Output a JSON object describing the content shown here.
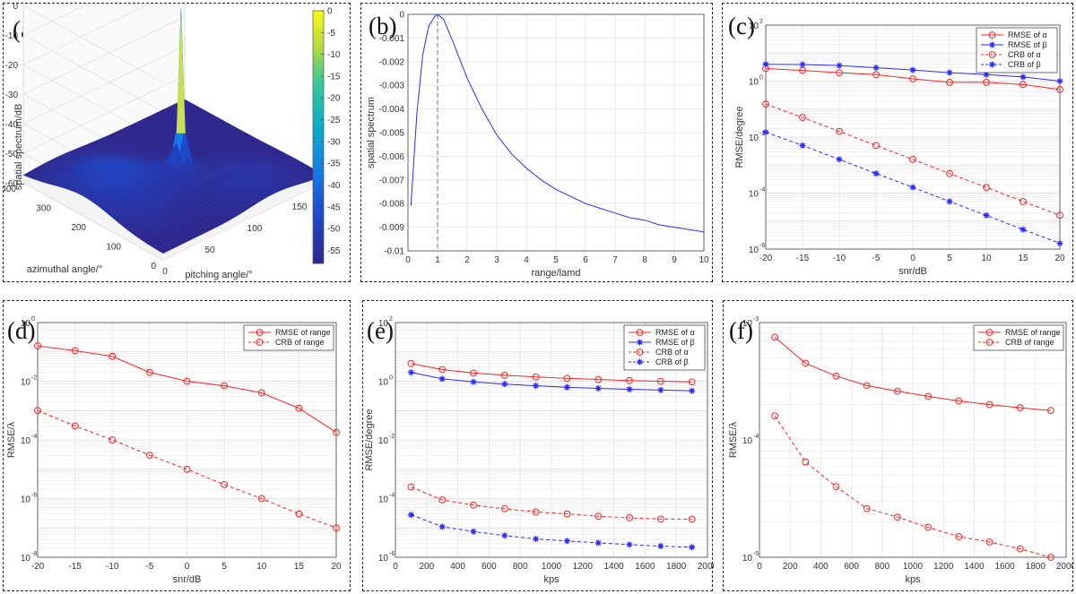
{
  "panel_labels": [
    "(a)",
    "(b)",
    "(c)",
    "(d)",
    "(e)",
    "(f)"
  ],
  "colors": {
    "red": "#ff2020",
    "blue": "#2a2aff",
    "grid": "#e4e4e4"
  },
  "chart_data": [
    {
      "id": "a",
      "type": "surface3d",
      "zlabel": "spatial spectrum/dB",
      "xlabel": "pitching angle/°",
      "ylabel": "azimuthal angle/°",
      "zlim": [
        -60,
        0
      ],
      "z_ticks": [
        "0",
        "-10",
        "-20",
        "-30",
        "-40",
        "-50",
        "-60"
      ],
      "azimuth_ticks": [
        "400",
        "300",
        "200",
        "100",
        "0"
      ],
      "pitch_ticks": [
        "0",
        "50",
        "100",
        "150"
      ],
      "colorbar_ticks": [
        "0",
        "-5",
        "-10",
        "-15",
        "-20",
        "-25",
        "-30",
        "-35",
        "-40",
        "-45",
        "-50",
        "-55"
      ],
      "colorbar_range": [
        -58,
        0
      ],
      "peak": {
        "pitch": 90,
        "azimuth": 180,
        "value": 0
      }
    },
    {
      "id": "b",
      "type": "line",
      "xlabel": "range/lamd",
      "ylabel": "spatial spectrum",
      "xlim": [
        0,
        10
      ],
      "ylim": [
        -0.01,
        0
      ],
      "x_ticks": [
        "0",
        "1",
        "2",
        "3",
        "4",
        "5",
        "6",
        "7",
        "8",
        "9",
        "10"
      ],
      "y_ticks": [
        "0",
        "-0.001",
        "-0.002",
        "-0.003",
        "-0.004",
        "-0.005",
        "-0.006",
        "-0.007",
        "-0.008",
        "-0.009",
        "-0.01"
      ],
      "series": [
        {
          "x": [
            0.1,
            0.3,
            0.5,
            0.7,
            0.9,
            1.0,
            1.2,
            1.5,
            2.0,
            2.5,
            3.0,
            3.5,
            4.0,
            4.5,
            5.0,
            5.5,
            6.0,
            6.5,
            7.0,
            7.5,
            8.0,
            8.5,
            9.0,
            9.5,
            10.0
          ],
          "y": [
            -0.0081,
            -0.0042,
            -0.0017,
            -0.0005,
            -0.0001,
            0,
            -0.0002,
            -0.0011,
            -0.0027,
            -0.004,
            -0.0051,
            -0.0059,
            -0.0065,
            -0.007,
            -0.0074,
            -0.0077,
            -0.008,
            -0.0082,
            -0.0084,
            -0.0086,
            -0.0087,
            -0.0089,
            -0.009,
            -0.0091,
            -0.0092
          ]
        }
      ],
      "marker_line_x": 1
    },
    {
      "id": "c",
      "type": "line",
      "yscale": "log",
      "xlabel": "snr/dB",
      "ylabel": "RMSE/degree",
      "xlim": [
        -20,
        20
      ],
      "ylim_exp": [
        -6,
        2
      ],
      "x_ticks": [
        "-20",
        "-15",
        "-10",
        "-5",
        "0",
        "5",
        "10",
        "15",
        "20"
      ],
      "y_tick_exps": [
        2,
        0,
        -2,
        -4,
        -6
      ],
      "legend": "top-right",
      "x": [
        -20,
        -15,
        -10,
        -5,
        0,
        5,
        10,
        15,
        20
      ],
      "series": [
        {
          "name": "RMSE of α",
          "color": "red",
          "dash": false,
          "marker": "circle",
          "values": [
            2.8,
            2.4,
            2.0,
            1.7,
            1.2,
            0.9,
            0.9,
            0.75,
            0.5
          ]
        },
        {
          "name": "RMSE of β",
          "color": "blue",
          "dash": false,
          "marker": "star",
          "values": [
            4.0,
            3.9,
            3.6,
            3.0,
            2.5,
            2.0,
            1.7,
            1.4,
            1.0
          ]
        },
        {
          "name": "CRB of α",
          "color": "red",
          "dash": true,
          "marker": "circle",
          "values": [
            0.15,
            0.05,
            0.016,
            0.005,
            0.0016,
            0.0005,
            0.00016,
            5e-05,
            1.6e-05
          ]
        },
        {
          "name": "CRB of β",
          "color": "blue",
          "dash": true,
          "marker": "star",
          "values": [
            0.015,
            0.005,
            0.0016,
            0.0005,
            0.00016,
            5e-05,
            1.6e-05,
            5e-06,
            1.6e-06
          ]
        }
      ]
    },
    {
      "id": "d",
      "type": "line",
      "yscale": "log",
      "xlabel": "snr/dB",
      "ylabel": "RMSE/λ",
      "xlim": [
        -20,
        20
      ],
      "ylim_exp": [
        -8,
        0
      ],
      "x_ticks": [
        "-20",
        "-15",
        "-10",
        "-5",
        "0",
        "5",
        "10",
        "15",
        "20"
      ],
      "y_tick_exps": [
        0,
        -2,
        -4,
        -6,
        -8
      ],
      "legend": "top-right",
      "x": [
        -20,
        -15,
        -10,
        -5,
        0,
        5,
        10,
        15,
        20
      ],
      "series": [
        {
          "name": "RMSE of range",
          "color": "red",
          "dash": false,
          "marker": "circle",
          "values": [
            0.16,
            0.11,
            0.07,
            0.02,
            0.01,
            0.007,
            0.004,
            0.0012,
            0.00018
          ]
        },
        {
          "name": "CRB of range",
          "color": "red",
          "dash": true,
          "marker": "circle",
          "values": [
            0.001,
            0.0003,
            0.0001,
            3e-05,
            1e-05,
            3e-06,
            1e-06,
            3e-07,
            1e-07
          ]
        }
      ]
    },
    {
      "id": "e",
      "type": "line",
      "yscale": "log",
      "xlabel": "kps",
      "ylabel": "RMSE/degree",
      "xlim": [
        0,
        2000
      ],
      "ylim_exp": [
        -6,
        2
      ],
      "x_ticks": [
        "0",
        "200",
        "400",
        "600",
        "800",
        "1000",
        "1200",
        "1400",
        "1600",
        "1800",
        "2000"
      ],
      "y_tick_exps": [
        2,
        0,
        -2,
        -4,
        -6
      ],
      "legend": "top-right",
      "x": [
        100,
        300,
        500,
        700,
        900,
        1100,
        1300,
        1500,
        1700,
        1900
      ],
      "series": [
        {
          "name": "RMSE of α",
          "color": "red",
          "dash": false,
          "marker": "circle",
          "values": [
            4.0,
            2.5,
            1.9,
            1.6,
            1.4,
            1.25,
            1.15,
            1.05,
            1.0,
            0.95
          ]
        },
        {
          "name": "RMSE of β",
          "color": "blue",
          "dash": false,
          "marker": "star",
          "values": [
            2.0,
            1.2,
            0.95,
            0.8,
            0.7,
            0.62,
            0.57,
            0.53,
            0.5,
            0.47
          ]
        },
        {
          "name": "CRB of α",
          "color": "red",
          "dash": true,
          "marker": "circle",
          "values": [
            0.00025,
            9e-05,
            6e-05,
            4.5e-05,
            3.5e-05,
            3e-05,
            2.5e-05,
            2.2e-05,
            2e-05,
            2e-05
          ]
        },
        {
          "name": "CRB of β",
          "color": "blue",
          "dash": true,
          "marker": "star",
          "values": [
            2.8e-05,
            1.1e-05,
            7.5e-06,
            5.5e-06,
            4.2e-06,
            3.6e-06,
            3.1e-06,
            2.7e-06,
            2.4e-06,
            2.2e-06
          ]
        }
      ]
    },
    {
      "id": "f",
      "type": "line",
      "yscale": "log",
      "xlabel": "kps",
      "ylabel": "RMSE/λ",
      "xlim": [
        0,
        2000
      ],
      "ylim_exp": [
        -5,
        -3
      ],
      "x_ticks": [
        "0",
        "200",
        "400",
        "600",
        "800",
        "1000",
        "1200",
        "1400",
        "1600",
        "1800",
        "2000"
      ],
      "y_tick_exps": [
        -3,
        -4,
        -5
      ],
      "legend": "top-right",
      "x": [
        100,
        300,
        500,
        700,
        900,
        1100,
        1300,
        1500,
        1700,
        1900
      ],
      "series": [
        {
          "name": "RMSE of range",
          "color": "red",
          "dash": false,
          "marker": "circle",
          "values": [
            0.00075,
            0.00045,
            0.00035,
            0.00029,
            0.00026,
            0.000235,
            0.000215,
            0.0002,
            0.000188,
            0.000178
          ]
        },
        {
          "name": "CRB of range",
          "color": "red",
          "dash": true,
          "marker": "circle",
          "values": [
            0.00016,
            6.5e-05,
            4e-05,
            2.6e-05,
            2.2e-05,
            1.8e-05,
            1.5e-05,
            1.35e-05,
            1.18e-05,
            1e-05
          ]
        }
      ]
    }
  ]
}
